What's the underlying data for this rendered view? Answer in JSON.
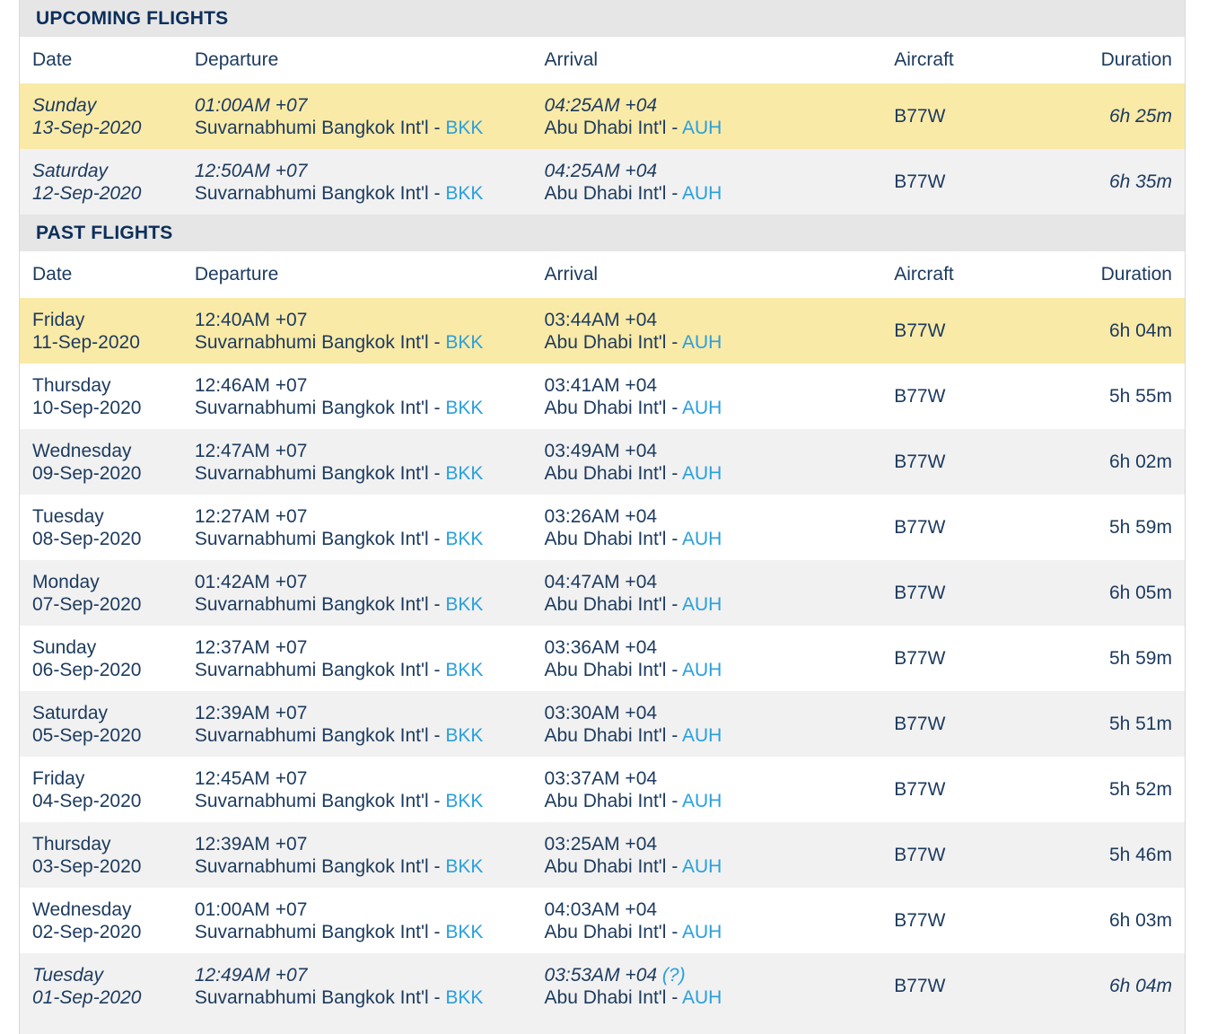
{
  "upcoming": {
    "title": "UPCOMING FLIGHTS",
    "headers": {
      "date": "Date",
      "departure": "Departure",
      "arrival": "Arrival",
      "aircraft": "Aircraft",
      "duration": "Duration"
    },
    "rows": [
      {
        "day": "Sunday",
        "date": "13-Sep-2020",
        "dep_time": "01:00AM +07",
        "dep_airport": "Suvarnabhumi Bangkok Int'l",
        "sep": " - ",
        "dep_code": "BKK",
        "arr_time": "04:25AM +04",
        "arr_note": "",
        "arr_airport": "Abu Dhabi Int'l",
        "arr_code": "AUH",
        "aircraft": "B77W",
        "duration": "6h 25m"
      },
      {
        "day": "Saturday",
        "date": "12-Sep-2020",
        "dep_time": "12:50AM +07",
        "dep_airport": "Suvarnabhumi Bangkok Int'l",
        "sep": " - ",
        "dep_code": "BKK",
        "arr_time": "04:25AM +04",
        "arr_note": "",
        "arr_airport": "Abu Dhabi Int'l",
        "arr_code": "AUH",
        "aircraft": "B77W",
        "duration": "6h 35m"
      }
    ]
  },
  "past": {
    "title": "PAST FLIGHTS",
    "headers": {
      "date": "Date",
      "departure": "Departure",
      "arrival": "Arrival",
      "aircraft": "Aircraft",
      "duration": "Duration"
    },
    "rows": [
      {
        "day": "Friday",
        "date": "11-Sep-2020",
        "dep_time": "12:40AM +07",
        "dep_airport": "Suvarnabhumi Bangkok Int'l",
        "sep": " - ",
        "dep_code": "BKK",
        "arr_time": "03:44AM +04",
        "arr_note": "",
        "arr_airport": "Abu Dhabi Int'l",
        "arr_code": "AUH",
        "aircraft": "B77W",
        "duration": "6h 04m"
      },
      {
        "day": "Thursday",
        "date": "10-Sep-2020",
        "dep_time": "12:46AM +07",
        "dep_airport": "Suvarnabhumi Bangkok Int'l",
        "sep": " - ",
        "dep_code": "BKK",
        "arr_time": "03:41AM +04",
        "arr_note": "",
        "arr_airport": "Abu Dhabi Int'l",
        "arr_code": "AUH",
        "aircraft": "B77W",
        "duration": "5h 55m"
      },
      {
        "day": "Wednesday",
        "date": "09-Sep-2020",
        "dep_time": "12:47AM +07",
        "dep_airport": "Suvarnabhumi Bangkok Int'l",
        "sep": " - ",
        "dep_code": "BKK",
        "arr_time": "03:49AM +04",
        "arr_note": "",
        "arr_airport": "Abu Dhabi Int'l",
        "arr_code": "AUH",
        "aircraft": "B77W",
        "duration": "6h 02m"
      },
      {
        "day": "Tuesday",
        "date": "08-Sep-2020",
        "dep_time": "12:27AM +07",
        "dep_airport": "Suvarnabhumi Bangkok Int'l",
        "sep": " - ",
        "dep_code": "BKK",
        "arr_time": "03:26AM +04",
        "arr_note": "",
        "arr_airport": "Abu Dhabi Int'l",
        "arr_code": "AUH",
        "aircraft": "B77W",
        "duration": "5h 59m"
      },
      {
        "day": "Monday",
        "date": "07-Sep-2020",
        "dep_time": "01:42AM +07",
        "dep_airport": "Suvarnabhumi Bangkok Int'l",
        "sep": " - ",
        "dep_code": "BKK",
        "arr_time": "04:47AM +04",
        "arr_note": "",
        "arr_airport": "Abu Dhabi Int'l",
        "arr_code": "AUH",
        "aircraft": "B77W",
        "duration": "6h 05m"
      },
      {
        "day": "Sunday",
        "date": "06-Sep-2020",
        "dep_time": "12:37AM +07",
        "dep_airport": "Suvarnabhumi Bangkok Int'l",
        "sep": " - ",
        "dep_code": "BKK",
        "arr_time": "03:36AM +04",
        "arr_note": "",
        "arr_airport": "Abu Dhabi Int'l",
        "arr_code": "AUH",
        "aircraft": "B77W",
        "duration": "5h 59m"
      },
      {
        "day": "Saturday",
        "date": "05-Sep-2020",
        "dep_time": "12:39AM +07",
        "dep_airport": "Suvarnabhumi Bangkok Int'l",
        "sep": " - ",
        "dep_code": "BKK",
        "arr_time": "03:30AM +04",
        "arr_note": "",
        "arr_airport": "Abu Dhabi Int'l",
        "arr_code": "AUH",
        "aircraft": "B77W",
        "duration": "5h 51m"
      },
      {
        "day": "Friday",
        "date": "04-Sep-2020",
        "dep_time": "12:45AM +07",
        "dep_airport": "Suvarnabhumi Bangkok Int'l",
        "sep": " - ",
        "dep_code": "BKK",
        "arr_time": "03:37AM +04",
        "arr_note": "",
        "arr_airport": "Abu Dhabi Int'l",
        "arr_code": "AUH",
        "aircraft": "B77W",
        "duration": "5h 52m"
      },
      {
        "day": "Thursday",
        "date": "03-Sep-2020",
        "dep_time": "12:39AM +07",
        "dep_airport": "Suvarnabhumi Bangkok Int'l",
        "sep": " - ",
        "dep_code": "BKK",
        "arr_time": "03:25AM +04",
        "arr_note": "",
        "arr_airport": "Abu Dhabi Int'l",
        "arr_code": "AUH",
        "aircraft": "B77W",
        "duration": "5h 46m"
      },
      {
        "day": "Wednesday",
        "date": "02-Sep-2020",
        "dep_time": "01:00AM +07",
        "dep_airport": "Suvarnabhumi Bangkok Int'l",
        "sep": " - ",
        "dep_code": "BKK",
        "arr_time": "04:03AM +04",
        "arr_note": "",
        "arr_airport": "Abu Dhabi Int'l",
        "arr_code": "AUH",
        "aircraft": "B77W",
        "duration": "6h 03m"
      },
      {
        "day": "Tuesday",
        "date": "01-Sep-2020",
        "dep_time": "12:49AM +07",
        "dep_airport": "Suvarnabhumi Bangkok Int'l",
        "sep": " - ",
        "dep_code": "BKK",
        "arr_time": "03:53AM +04",
        "arr_note": "(?)",
        "arr_airport": "Abu Dhabi Int'l",
        "arr_code": "AUH",
        "aircraft": "B77W",
        "duration": "6h 04m"
      }
    ]
  },
  "colors": {
    "title_text": "#0b2e5a",
    "body_text": "#1c3a5e",
    "airport_code": "#2aa0dd",
    "highlight_row": "#faeaa7",
    "alt_row": "#f1f1f1",
    "section_bg": "#e6e6e6"
  }
}
